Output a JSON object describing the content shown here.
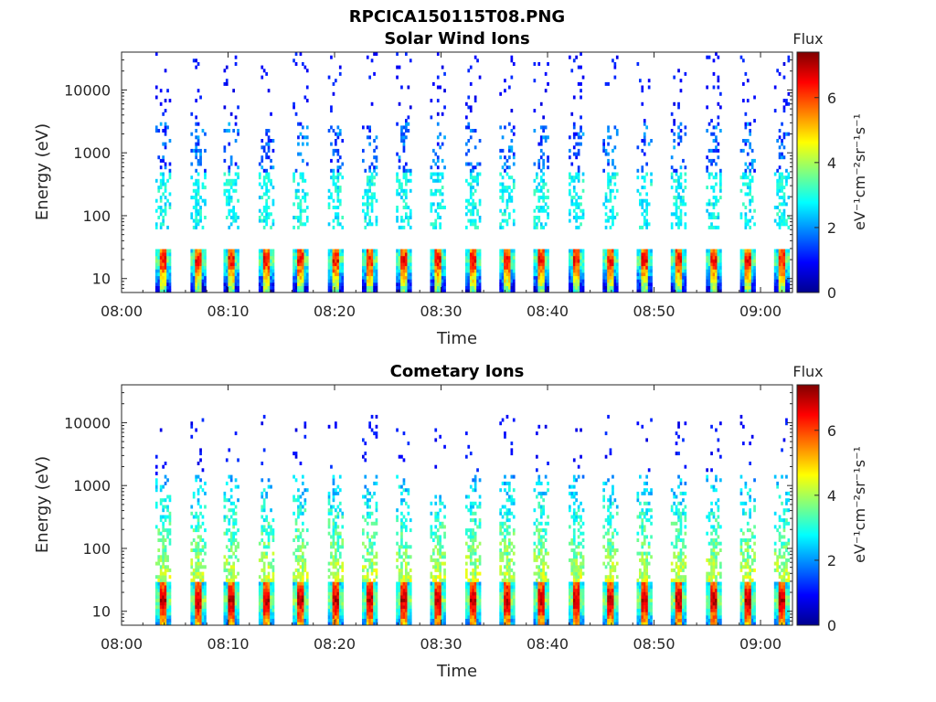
{
  "figure_title": "RPCICA150115T08.PNG",
  "chart_data": [
    {
      "type": "heatmap",
      "title": "Solar Wind Ions",
      "xlabel": "Time",
      "ylabel": "Energy (eV)",
      "y_scale": "log",
      "ylim": [
        6,
        40000
      ],
      "xlim": [
        "08:00",
        "09:03"
      ],
      "x_ticks": [
        "08:00",
        "08:10",
        "08:20",
        "08:30",
        "08:40",
        "08:50",
        "09:00"
      ],
      "y_ticks": [
        "10",
        "100",
        "1000",
        "10000"
      ],
      "colorbar": {
        "label": "Flux",
        "units": "eV⁻¹cm⁻²sr⁻¹s⁻¹",
        "range": [
          0,
          7.4
        ],
        "ticks": [
          "0",
          "2",
          "4",
          "6"
        ],
        "colormap": "jet"
      },
      "scan_times_min": [
        3.8,
        7.1,
        10.2,
        13.5,
        16.7,
        20.0,
        23.2,
        26.4,
        29.6,
        32.9,
        36.1,
        39.3,
        42.6,
        45.8,
        49.0,
        52.2,
        55.5,
        58.7,
        61.9
      ],
      "low_band": {
        "energy_range_eV": [
          6,
          28
        ],
        "peak_energy_eV": 20,
        "peak_flux": 6.5
      },
      "mid_band": {
        "energy_range_eV": [
          60,
          500
        ],
        "typical_flux": 2.8
      },
      "high_band": {
        "energy_range_eV": [
          500,
          3000
        ],
        "typical_flux": 1.6
      },
      "sparse_counts": {
        "energy_range_eV": [
          3000,
          40000
        ],
        "typical_flux": 1.0
      }
    },
    {
      "type": "heatmap",
      "title": "Cometary Ions",
      "xlabel": "Time",
      "ylabel": "Energy (eV)",
      "y_scale": "log",
      "ylim": [
        6,
        40000
      ],
      "xlim": [
        "08:00",
        "09:03"
      ],
      "x_ticks": [
        "08:00",
        "08:10",
        "08:20",
        "08:30",
        "08:40",
        "08:50",
        "09:00"
      ],
      "y_ticks": [
        "10",
        "100",
        "1000",
        "10000"
      ],
      "colorbar": {
        "label": "Flux",
        "units": "eV⁻¹cm⁻²sr⁻¹s⁻¹",
        "range": [
          0,
          7.4
        ],
        "ticks": [
          "0",
          "2",
          "4",
          "6"
        ],
        "colormap": "jet"
      },
      "scan_times_min": [
        3.8,
        7.1,
        10.2,
        13.5,
        16.7,
        20.0,
        23.2,
        26.4,
        29.6,
        32.9,
        36.1,
        39.3,
        42.6,
        45.8,
        49.0,
        52.2,
        55.5,
        58.7,
        61.9
      ],
      "low_band": {
        "energy_range_eV": [
          6,
          30
        ],
        "peak_energy_eV": 15,
        "peak_flux": 7.0
      },
      "mid_band": {
        "energy_range_eV": [
          30,
          1500
        ],
        "typical_flux": 3.6
      },
      "sparse_counts": {
        "energy_range_eV": [
          1500,
          13000
        ],
        "typical_flux": 1.0
      }
    }
  ]
}
